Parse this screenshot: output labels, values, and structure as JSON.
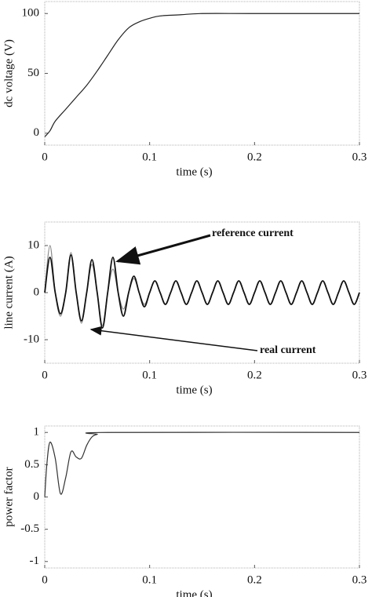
{
  "chart_data": [
    {
      "type": "line",
      "xlabel": "time (s)",
      "ylabel": "dc voltage (V)",
      "x": [
        0,
        0.005,
        0.01,
        0.02,
        0.03,
        0.04,
        0.05,
        0.06,
        0.07,
        0.08,
        0.09,
        0.1,
        0.11,
        0.13,
        0.15,
        0.2,
        0.3
      ],
      "values": [
        -3,
        2,
        10,
        20,
        30,
        40,
        52,
        65,
        78,
        88,
        93,
        96,
        98,
        99,
        100,
        100,
        100
      ],
      "color": "#222",
      "xlim": [
        0,
        0.3
      ],
      "ylim": [
        -10,
        110
      ],
      "xticks": [
        0,
        0.1,
        0.2,
        0.3
      ],
      "yticks": [
        0,
        50,
        100
      ]
    },
    {
      "type": "line",
      "xlabel": "time (s)",
      "ylabel": "line current (A)",
      "x": [
        0,
        0.005,
        0.01,
        0.015,
        0.02,
        0.025,
        0.03,
        0.035,
        0.04,
        0.045,
        0.05,
        0.055,
        0.06,
        0.065,
        0.07,
        0.075,
        0.08,
        0.085,
        0.09,
        0.095,
        0.1,
        0.105,
        0.11,
        0.115,
        0.12,
        0.125,
        0.13,
        0.135,
        0.14,
        0.145,
        0.15,
        0.155,
        0.16,
        0.165,
        0.17,
        0.175,
        0.18,
        0.185,
        0.19,
        0.195,
        0.2,
        0.205,
        0.21,
        0.215,
        0.22,
        0.225,
        0.23,
        0.235,
        0.24,
        0.245,
        0.25,
        0.255,
        0.26,
        0.265,
        0.27,
        0.275,
        0.28,
        0.285,
        0.29,
        0.295,
        0.3
      ],
      "series": [
        {
          "name": "reference current",
          "color": "#888",
          "values": [
            0,
            10,
            0,
            -5,
            0,
            8.5,
            0,
            -6.5,
            0,
            6,
            0,
            -7,
            0,
            5,
            0,
            -3.5,
            0,
            3,
            0,
            -2.5,
            0,
            2.5,
            0,
            -2.5,
            0,
            2.5,
            0,
            -2.5,
            0,
            2.5,
            0,
            -2.5,
            0,
            2.5,
            0,
            -2.5,
            0,
            2.5,
            0,
            -2.5,
            0,
            2.5,
            0,
            -2.5,
            0,
            2.5,
            0,
            -2.5,
            0,
            2.5,
            0,
            -2.5,
            0,
            2.5,
            0,
            -2.5,
            0,
            2.5,
            0,
            -2.5,
            0
          ]
        },
        {
          "name": "real current",
          "color": "#111",
          "values": [
            0,
            7.5,
            0,
            -4.5,
            0,
            8,
            0,
            -6,
            0,
            7,
            0,
            -7.5,
            0,
            7.5,
            0,
            -5,
            0,
            3.5,
            0,
            -3,
            0,
            2.5,
            0,
            -2.5,
            0,
            2.5,
            0,
            -2.5,
            0,
            2.5,
            0,
            -2.5,
            0,
            2.5,
            0,
            -2.5,
            0,
            2.5,
            0,
            -2.5,
            0,
            2.5,
            0,
            -2.5,
            0,
            2.5,
            0,
            -2.5,
            0,
            2.5,
            0,
            -2.5,
            0,
            2.5,
            0,
            -2.5,
            0,
            2.5,
            0,
            -2.5,
            0
          ]
        }
      ],
      "xlim": [
        0,
        0.3
      ],
      "ylim": [
        -15,
        15
      ],
      "xticks": [
        0,
        0.1,
        0.2,
        0.3
      ],
      "yticks": [
        -10,
        0,
        10
      ]
    },
    {
      "type": "line",
      "xlabel": "time (s)",
      "ylabel": "power factor",
      "x": [
        0,
        0.002,
        0.005,
        0.01,
        0.015,
        0.02,
        0.025,
        0.03,
        0.035,
        0.04,
        0.045,
        0.05,
        0.06,
        0.3
      ],
      "values": [
        0,
        0.5,
        0.85,
        0.6,
        0.05,
        0.3,
        0.7,
        0.62,
        0.6,
        0.8,
        0.93,
        0.97,
        1,
        1
      ],
      "color": "#333",
      "xlim": [
        0,
        0.3
      ],
      "ylim": [
        -1.1,
        1.1
      ],
      "xticks": [
        0,
        0.1,
        0.2,
        0.3
      ],
      "yticks": [
        -1,
        -0.5,
        0,
        0.5,
        1
      ]
    }
  ]
}
